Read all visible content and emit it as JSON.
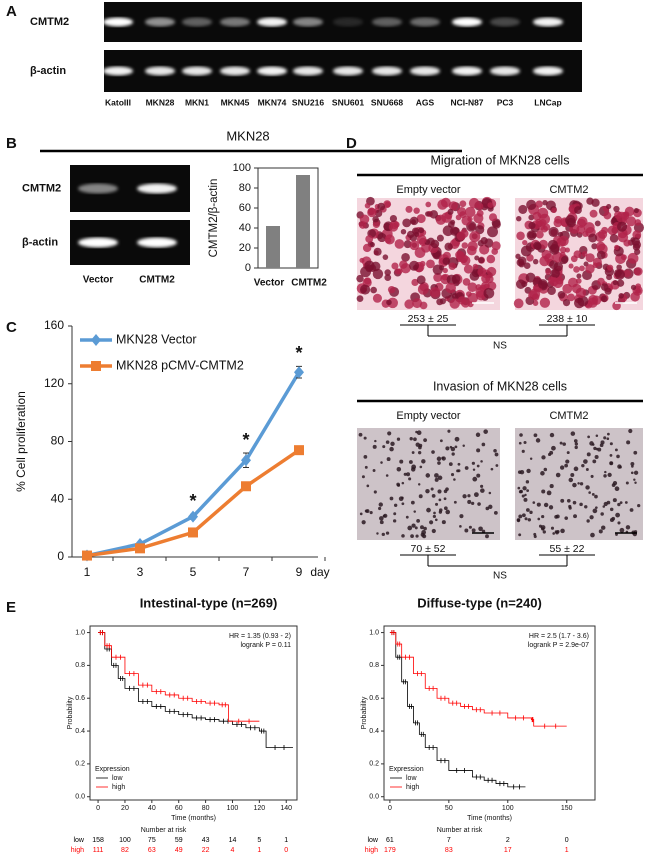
{
  "figure": {
    "panel_labels": [
      "A",
      "B",
      "C",
      "D",
      "E"
    ],
    "gel_a": {
      "rows": [
        "CMTM2",
        "β-actin"
      ],
      "lanes": [
        "KatoIII",
        "MKN28",
        "MKN1",
        "MKN45",
        "MKN74",
        "SNU216",
        "SNU601",
        "SNU668",
        "AGS",
        "NCI-N87",
        "PC3",
        "LNCap"
      ]
    },
    "gel_b": {
      "title": "MKN28",
      "rows": [
        "CMTM2",
        "β-actin"
      ],
      "lanes": [
        "Vector",
        "CMTM2"
      ]
    },
    "migration": {
      "title": "Migration of MKN28 cells",
      "groups": [
        "Empty vector",
        "CMTM2"
      ],
      "counts": [
        "253 ± 25",
        "238 ± 10"
      ],
      "significance": "NS"
    },
    "invasion": {
      "title": "Invasion of MKN28 cells",
      "groups": [
        "Empty vector",
        "CMTM2"
      ],
      "counts": [
        "70 ± 52",
        "55 ± 22"
      ],
      "significance": "NS"
    }
  },
  "chart_data": [
    {
      "type": "bar",
      "ylabel": "CMTM2/β-actin",
      "categories": [
        "Vector",
        "CMTM2"
      ],
      "values": [
        42,
        93
      ],
      "color": "#808080",
      "ylim": [
        0,
        100
      ],
      "yticks": [
        0,
        20,
        40,
        60,
        80,
        100
      ]
    },
    {
      "type": "line",
      "xlabel": "day",
      "ylabel": "% Cell proliferation",
      "categories": [
        "1",
        "3",
        "5",
        "7",
        "9"
      ],
      "ylim": [
        0,
        160
      ],
      "yticks": [
        0,
        40,
        80,
        120,
        160
      ],
      "series": [
        {
          "name": "MKN28 Vector",
          "color": "#5b9bd5",
          "marker": "diamond",
          "values": [
            1,
            9,
            28,
            67,
            128
          ],
          "errors": [
            0.5,
            1,
            1.5,
            5,
            4
          ]
        },
        {
          "name": "MKN28 pCMV-CMTM2",
          "color": "#ed7d31",
          "marker": "square",
          "values": [
            1,
            6,
            17,
            49,
            74
          ],
          "errors": [
            0.5,
            1,
            1.5,
            1.5,
            1.5
          ]
        }
      ],
      "annotations": [
        {
          "text": "*",
          "x": "5"
        },
        {
          "text": "*",
          "x": "7"
        },
        {
          "text": "*",
          "x": "9"
        }
      ]
    },
    {
      "type": "km",
      "title": "Intestinal-type (n=269)",
      "xlabel": "Time (months)",
      "ylabel": "Probability",
      "xlim": [
        -6,
        148
      ],
      "xticks": [
        0,
        20,
        40,
        60,
        80,
        100,
        120,
        140
      ],
      "ylim": [
        -0.02,
        1.04
      ],
      "yticks": [
        {
          "value": 0,
          "label": "0.0"
        },
        0.2,
        0.4,
        0.6,
        0.8,
        {
          "value": 1,
          "label": "1.0"
        }
      ],
      "annotations": [
        "HR = 1.35 (0.93 - 2)",
        "logrank P = 0.11"
      ],
      "legend": {
        "title": "Expression",
        "position": "lower left"
      },
      "series": [
        {
          "name": "low",
          "color": "#000000",
          "x": [
            0,
            5,
            10,
            15,
            20,
            30,
            40,
            50,
            60,
            70,
            80,
            90,
            100,
            110,
            120,
            125,
            145
          ],
          "values": [
            1.0,
            0.9,
            0.8,
            0.72,
            0.66,
            0.58,
            0.55,
            0.52,
            0.5,
            0.48,
            0.47,
            0.46,
            0.44,
            0.42,
            0.4,
            0.3,
            0.3
          ]
        },
        {
          "name": "high",
          "color": "#ff0000",
          "x": [
            0,
            5,
            10,
            20,
            30,
            40,
            50,
            60,
            70,
            80,
            90,
            97,
            120
          ],
          "values": [
            1.0,
            0.92,
            0.85,
            0.75,
            0.68,
            0.64,
            0.62,
            0.6,
            0.58,
            0.57,
            0.56,
            0.46,
            0.46
          ]
        }
      ],
      "risk_table": {
        "title": "Number at risk",
        "values": [
          [
            158,
            100,
            75,
            59,
            43,
            14,
            5,
            1
          ],
          [
            111,
            82,
            63,
            49,
            22,
            4,
            1,
            0
          ]
        ]
      }
    },
    {
      "type": "km",
      "title": "Diffuse-type (n=240)",
      "xlabel": "Time (months)",
      "ylabel": "Probability",
      "xlim": [
        -5,
        174
      ],
      "xticks": [
        0,
        50,
        100,
        150
      ],
      "ylim": [
        -0.02,
        1.04
      ],
      "yticks": [
        {
          "value": 0,
          "label": "0.0"
        },
        0.2,
        0.4,
        0.6,
        0.8,
        {
          "value": 1,
          "label": "1.0"
        }
      ],
      "annotations": [
        "HR = 2.5 (1.7 - 3.6)",
        "logrank P = 2.9e-07"
      ],
      "legend": {
        "title": "Expression",
        "position": "lower left"
      },
      "series": [
        {
          "name": "low",
          "color": "#000000",
          "x": [
            0,
            5,
            10,
            15,
            20,
            25,
            30,
            40,
            50,
            70,
            80,
            90,
            100,
            115
          ],
          "values": [
            1.0,
            0.85,
            0.7,
            0.55,
            0.45,
            0.38,
            0.3,
            0.22,
            0.16,
            0.12,
            0.1,
            0.08,
            0.06,
            0.06
          ]
        },
        {
          "name": "high",
          "color": "#ff0000",
          "x": [
            0,
            5,
            10,
            20,
            30,
            40,
            50,
            60,
            70,
            80,
            100,
            120,
            122,
            150
          ],
          "values": [
            1.0,
            0.93,
            0.85,
            0.75,
            0.66,
            0.6,
            0.57,
            0.55,
            0.53,
            0.51,
            0.48,
            0.47,
            0.43,
            0.43
          ]
        }
      ],
      "risk_table": {
        "title": "Number at risk",
        "values": [
          [
            61,
            7,
            2,
            0
          ],
          [
            179,
            83,
            17,
            1
          ]
        ]
      }
    }
  ]
}
